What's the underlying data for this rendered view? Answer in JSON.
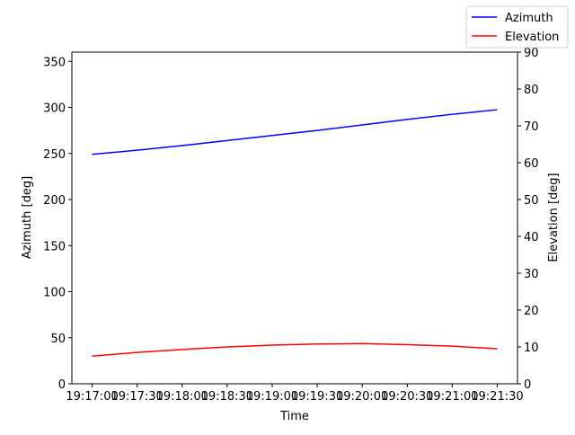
{
  "chart_data": {
    "type": "line",
    "x_label": "Time",
    "y_label": "Azimuth [deg]",
    "y2_label": "Elevation [deg]",
    "x": [
      "19:17:00",
      "19:17:30",
      "19:18:00",
      "19:18:30",
      "19:19:00",
      "19:19:30",
      "19:20:00",
      "19:20:30",
      "19:21:00",
      "19:21:30"
    ],
    "xlim": [
      "19:16:46.5",
      "19:21:43.5"
    ],
    "xticks": [
      "19:17:00",
      "19:17:30",
      "19:18:00",
      "19:18:30",
      "19:19:00",
      "19:19:30",
      "19:20:00",
      "19:20:30",
      "19:21:00",
      "19:21:30"
    ],
    "ylim": [
      0,
      360
    ],
    "yticks": [
      0,
      50,
      100,
      150,
      200,
      250,
      300,
      350
    ],
    "y2lim": [
      0,
      90
    ],
    "y2ticks": [
      0,
      10,
      20,
      30,
      40,
      50,
      60,
      70,
      80,
      90
    ],
    "legend": "upper right",
    "series": [
      {
        "name": "Azimuth",
        "color": "#0000ff",
        "values": [
          249,
          253.5,
          258.5,
          264,
          269.5,
          275,
          281,
          287,
          292.5,
          297.5
        ]
      },
      {
        "name": "Elevation",
        "color": "#ff0000",
        "axis": "y2",
        "values": [
          7.5,
          8.5,
          9.3,
          10.0,
          10.5,
          10.8,
          10.9,
          10.6,
          10.2,
          9.5
        ]
      }
    ]
  }
}
